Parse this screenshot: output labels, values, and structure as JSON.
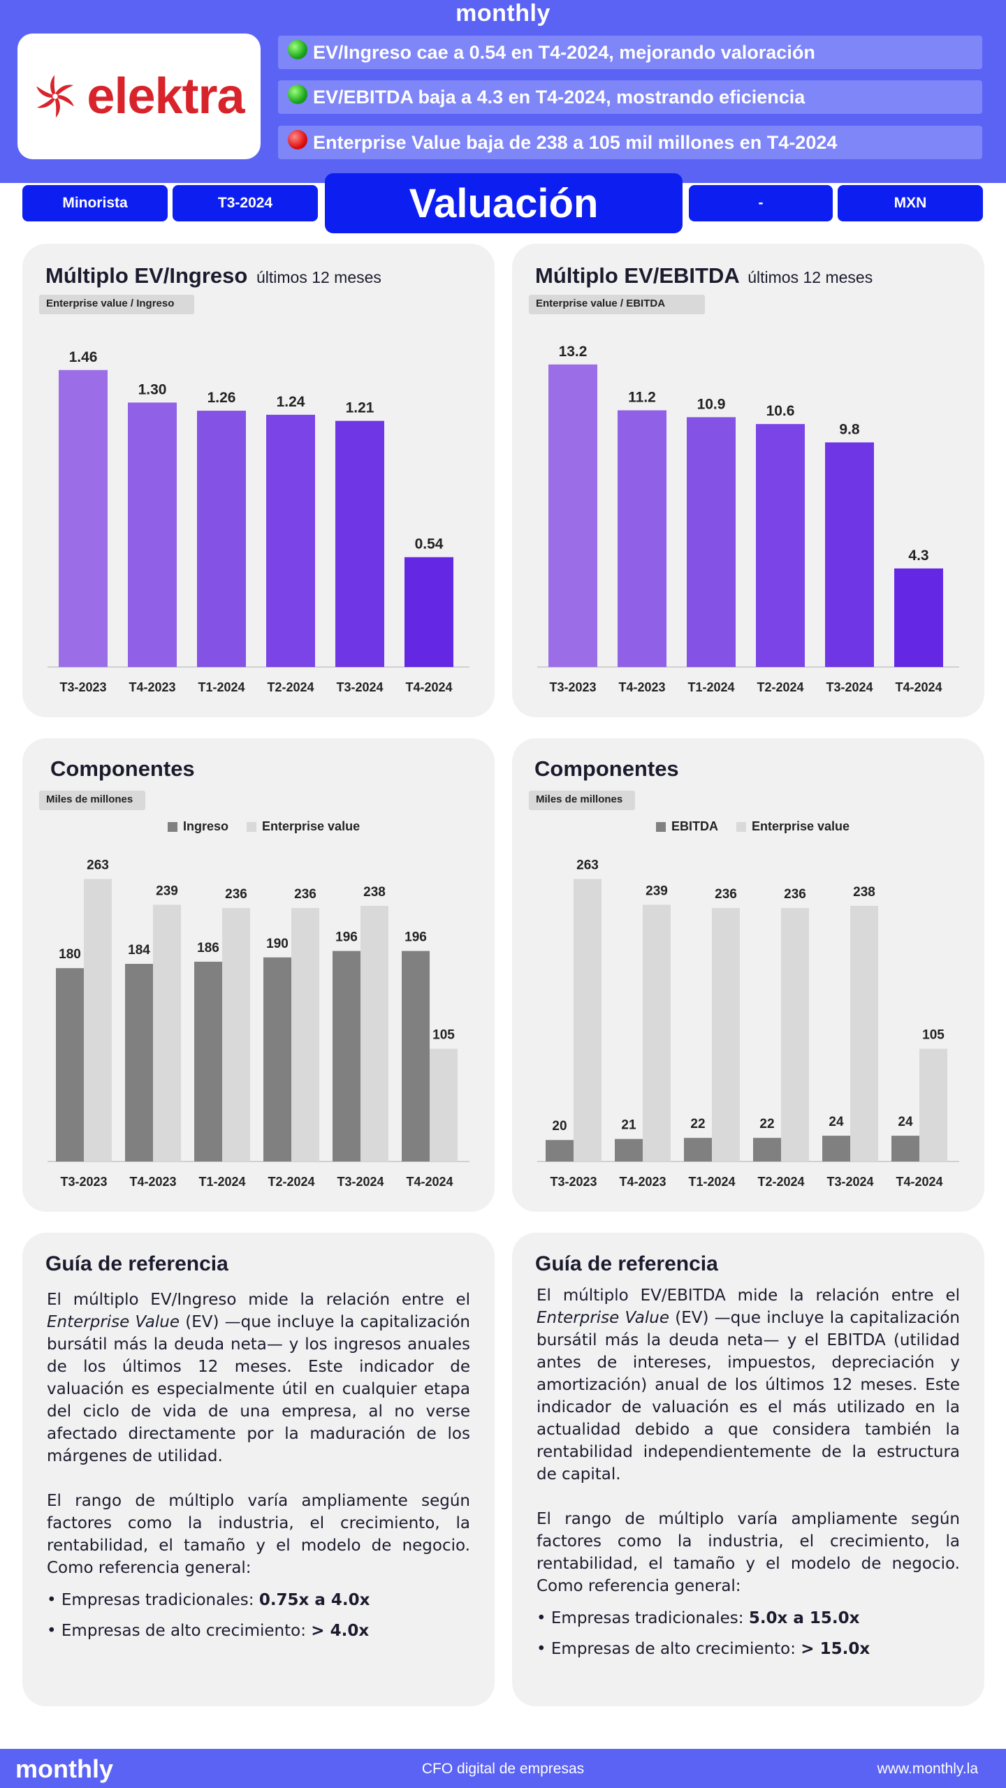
{
  "header": {
    "brand": "monthly",
    "logo_text": "elektra",
    "headlines": [
      {
        "status": "green",
        "text": "EV/Ingreso cae a 0.54 en T4-2024, mejorando valoración"
      },
      {
        "status": "green",
        "text": "EV/EBITDA baja a 4.3 en T4-2024, mostrando eficiencia"
      },
      {
        "status": "red",
        "text": "Enterprise Value baja de 238 a 105 mil millones en T4-2024"
      }
    ],
    "pills": {
      "sector": "Minorista",
      "period": "T3-2024",
      "dash": "-",
      "currency": "MXN"
    },
    "page_title": "Valuación"
  },
  "colors": {
    "header_bg": "#5b63f5",
    "pill_bg": "#0d1ff0",
    "bar_dark": "#808080",
    "bar_light": "#d9d9d9",
    "purple_start": "#9b6ee8",
    "purple_end": "#6428e4"
  },
  "panels": {
    "ev_ingreso": {
      "title": "Múltiplo EV/Ingreso",
      "subtitle": "últimos 12 meses",
      "tag": "Enterprise value  / Ingreso"
    },
    "ev_ebitda": {
      "title": "Múltiplo EV/EBITDA",
      "subtitle": "últimos 12 meses",
      "tag": "Enterprise value  / EBITDA"
    },
    "comp_ingreso": {
      "title": "Componentes",
      "tag": "Miles de millones",
      "legend": [
        "Ingreso",
        "Enterprise value"
      ]
    },
    "comp_ebitda": {
      "title": "Componentes",
      "tag": "Miles de millones",
      "legend": [
        "EBITDA",
        "Enterprise value"
      ]
    }
  },
  "chart_data": [
    {
      "id": "ev_ingreso",
      "type": "bar",
      "title": "Múltiplo EV/Ingreso",
      "categories": [
        "T3-2023",
        "T4-2023",
        "T1-2024",
        "T2-2024",
        "T3-2024",
        "T4-2024"
      ],
      "values": [
        1.46,
        1.3,
        1.26,
        1.24,
        1.21,
        0.54
      ],
      "labels": [
        "1.46",
        "1.30",
        "1.26",
        "1.24",
        "1.21",
        "0.54"
      ],
      "ylim": [
        0,
        1.6
      ]
    },
    {
      "id": "ev_ebitda",
      "type": "bar",
      "title": "Múltiplo EV/EBITDA",
      "categories": [
        "T3-2023",
        "T4-2023",
        "T1-2024",
        "T2-2024",
        "T3-2024",
        "T4-2024"
      ],
      "values": [
        13.2,
        11.2,
        10.9,
        10.6,
        9.8,
        4.3
      ],
      "labels": [
        "13.2",
        "11.2",
        "10.9",
        "10.6",
        "9.8",
        "4.3"
      ],
      "ylim": [
        0,
        14.2
      ]
    },
    {
      "id": "comp_ingreso",
      "type": "bar",
      "title": "Componentes",
      "categories": [
        "T3-2023",
        "T4-2023",
        "T1-2024",
        "T2-2024",
        "T3-2024",
        "T4-2024"
      ],
      "series": [
        {
          "name": "Ingreso",
          "values": [
            180,
            184,
            186,
            190,
            196,
            196
          ]
        },
        {
          "name": "Enterprise value",
          "values": [
            263,
            239,
            236,
            236,
            238,
            105
          ]
        }
      ],
      "ylim": [
        0,
        290
      ]
    },
    {
      "id": "comp_ebitda",
      "type": "bar",
      "title": "Componentes",
      "categories": [
        "T3-2023",
        "T4-2023",
        "T1-2024",
        "T2-2024",
        "T3-2024",
        "T4-2024"
      ],
      "series": [
        {
          "name": "EBITDA",
          "values": [
            20,
            21,
            22,
            22,
            24,
            24
          ]
        },
        {
          "name": "Enterprise value",
          "values": [
            263,
            239,
            236,
            236,
            238,
            105
          ]
        }
      ],
      "ylim": [
        0,
        290
      ]
    }
  ],
  "guides": {
    "left": {
      "title": "Guía de referencia",
      "p1_a": "El múltiplo EV/Ingreso mide la relación entre el ",
      "p1_em": "Enterprise Value",
      "p1_b": " (EV) —que incluye la capitalización bursátil más la deuda neta— y los ingresos anuales de los últimos 12 meses. Este indicador de valuación es especialmente útil en cualquier etapa del ciclo de vida de una empresa, al no verse afectado directamente por la maduración de los márgenes de utilidad.",
      "p2": "El rango de múltiplo varía ampliamente según factores como la industria, el crecimiento, la rentabilidad, el tamaño y el modelo de negocio. Como referencia general:",
      "b1_label": "• Empresas tradicionales: ",
      "b1_value": "0.75x a 4.0x",
      "b2_label": "• Empresas de alto crecimiento: ",
      "b2_value": "> 4.0x"
    },
    "right": {
      "title": "Guía de referencia",
      "p1_a": "El múltiplo EV/EBITDA mide la relación entre el ",
      "p1_em": "Enterprise Value",
      "p1_b": " (EV) —que incluye la capitalización bursátil más la deuda neta— y el EBITDA (utilidad antes de intereses, impuestos, depreciación y amortización) anual de los últimos 12 meses. Este indicador de valuación es el más utilizado en la actualidad debido a que considera también la rentabilidad independientemente de la estructura de capital.",
      "p2": "El rango de múltiplo varía ampliamente según factores como la industria, el crecimiento, la rentabilidad, el tamaño y el modelo de negocio. Como referencia general:",
      "b1_label": "• Empresas tradicionales: ",
      "b1_value": "5.0x a 15.0x",
      "b2_label": "• Empresas de alto crecimiento: ",
      "b2_value": "> 15.0x"
    }
  },
  "footer": {
    "brand": "monthly",
    "tagline": "CFO digital de empresas",
    "url": "www.monthly.la"
  }
}
